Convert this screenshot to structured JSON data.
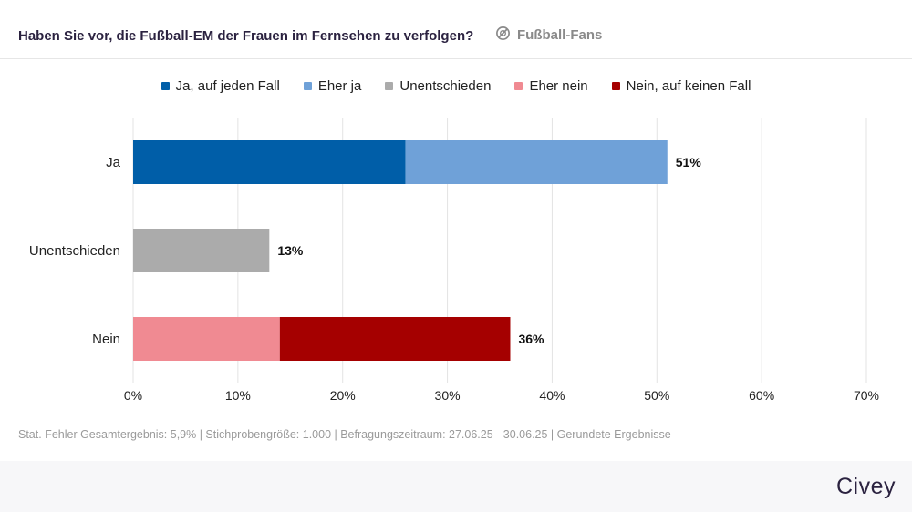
{
  "header": {
    "title": "Haben Sie vor, die Fußball-EM der Frauen im Fernsehen zu verfolgen?",
    "tag": "Fußball-Fans",
    "tag_icon": "no-sign-icon"
  },
  "legend": [
    {
      "label": "Ja, auf jeden Fall",
      "color": "#005ea8"
    },
    {
      "label": "Eher ja",
      "color": "#6fa1d8"
    },
    {
      "label": "Unentschieden",
      "color": "#ababab"
    },
    {
      "label": "Eher nein",
      "color": "#f08a92"
    },
    {
      "label": "Nein, auf keinen Fall",
      "color": "#a50000"
    }
  ],
  "chart_data": {
    "type": "bar",
    "orientation": "horizontal",
    "stacked": true,
    "categories": [
      "Ja",
      "Unentschieden",
      "Nein"
    ],
    "series": [
      {
        "name": "Ja, auf jeden Fall",
        "color": "#005ea8",
        "values": [
          26,
          0,
          0
        ]
      },
      {
        "name": "Eher ja",
        "color": "#6fa1d8",
        "values": [
          25,
          0,
          0
        ]
      },
      {
        "name": "Unentschieden",
        "color": "#ababab",
        "values": [
          0,
          13,
          0
        ]
      },
      {
        "name": "Eher nein",
        "color": "#f08a92",
        "values": [
          0,
          0,
          14
        ]
      },
      {
        "name": "Nein, auf keinen Fall",
        "color": "#a50000",
        "values": [
          0,
          0,
          22
        ]
      }
    ],
    "totals": [
      "51%",
      "13%",
      "36%"
    ],
    "xlim": [
      0,
      70
    ],
    "xticks": [
      0,
      10,
      20,
      30,
      40,
      50,
      60,
      70
    ],
    "xtick_labels": [
      "0%",
      "10%",
      "20%",
      "30%",
      "40%",
      "50%",
      "60%",
      "70%"
    ],
    "grid": true,
    "legend_position": "top"
  },
  "footnote": "Stat. Fehler Gesamtergebnis: 5,9% | Stichprobengröße: 1.000 | Befragungszeitraum: 27.06.25 - 30.06.25 | Gerundete Ergebnisse",
  "brand": "Civey"
}
